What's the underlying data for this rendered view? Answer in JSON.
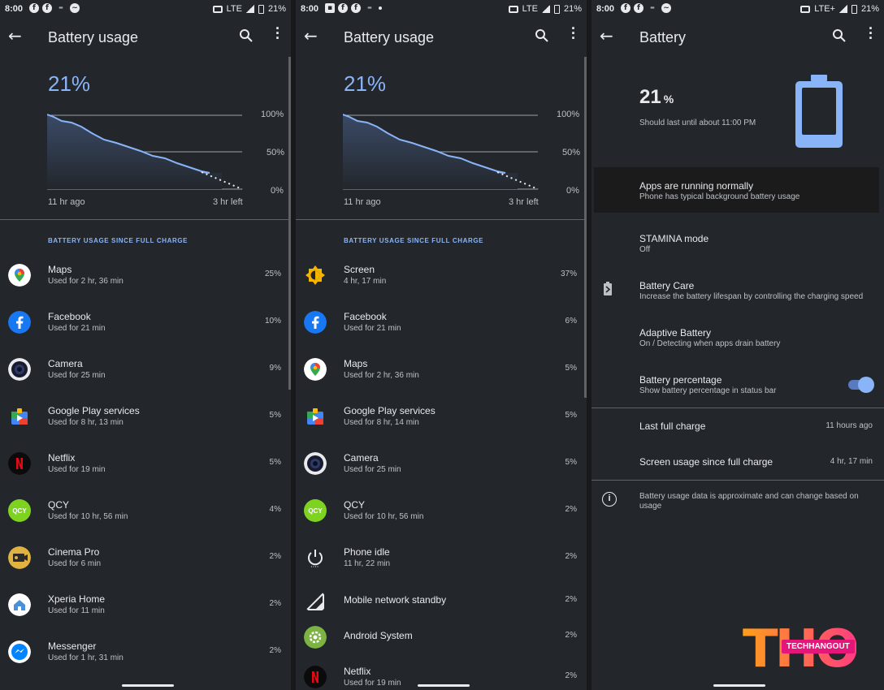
{
  "status": {
    "time": "8:00",
    "network": "LTE",
    "network_right": "LTE+",
    "battery": "21%"
  },
  "left": {
    "title": "Battery usage",
    "percent": "21%",
    "chart": {
      "tick_100": "100%",
      "tick_50": "50%",
      "tick_0": "0%",
      "start": "11 hr ago",
      "end": "3 hr left"
    },
    "section": "BATTERY USAGE SINCE FULL CHARGE",
    "apps": [
      {
        "name": "Maps",
        "sub": "Used for 2 hr, 36 min",
        "pct": "25%",
        "icon": "maps"
      },
      {
        "name": "Facebook",
        "sub": "Used for 21 min",
        "pct": "10%",
        "icon": "facebook"
      },
      {
        "name": "Camera",
        "sub": "Used for 25 min",
        "pct": "9%",
        "icon": "camera"
      },
      {
        "name": "Google Play services",
        "sub": "Used for 8 hr, 13 min",
        "pct": "5%",
        "icon": "playservices"
      },
      {
        "name": "Netflix",
        "sub": "Used for 19 min",
        "pct": "5%",
        "icon": "netflix"
      },
      {
        "name": "QCY",
        "sub": "Used for 10 hr, 56 min",
        "pct": "4%",
        "icon": "qcy"
      },
      {
        "name": "Cinema Pro",
        "sub": "Used for 6 min",
        "pct": "2%",
        "icon": "cinemapro"
      },
      {
        "name": "Xperia Home",
        "sub": "Used for 11 min",
        "pct": "2%",
        "icon": "xperiahome"
      },
      {
        "name": "Messenger",
        "sub": "Used for 1 hr, 31 min",
        "pct": "2%",
        "icon": "messenger"
      }
    ]
  },
  "mid": {
    "title": "Battery usage",
    "percent": "21%",
    "chart": {
      "tick_100": "100%",
      "tick_50": "50%",
      "tick_0": "0%",
      "start": "11 hr ago",
      "end": "3 hr left"
    },
    "section": "BATTERY USAGE SINCE FULL CHARGE",
    "apps": [
      {
        "name": "Screen",
        "sub": "4 hr, 17 min",
        "pct": "37%",
        "icon": "screen"
      },
      {
        "name": "Facebook",
        "sub": "Used for 21 min",
        "pct": "6%",
        "icon": "facebook"
      },
      {
        "name": "Maps",
        "sub": "Used for 2 hr, 36 min",
        "pct": "5%",
        "icon": "maps"
      },
      {
        "name": "Google Play services",
        "sub": "Used for 8 hr, 14 min",
        "pct": "5%",
        "icon": "playservices"
      },
      {
        "name": "Camera",
        "sub": "Used for 25 min",
        "pct": "5%",
        "icon": "camera"
      },
      {
        "name": "QCY",
        "sub": "Used for 10 hr, 56 min",
        "pct": "2%",
        "icon": "qcy"
      },
      {
        "name": "Phone idle",
        "sub": "11 hr, 22 min",
        "pct": "2%",
        "icon": "power"
      },
      {
        "name": "Mobile network standby",
        "sub": "",
        "pct": "2%",
        "icon": "signal"
      },
      {
        "name": "Android System",
        "sub": "",
        "pct": "2%",
        "icon": "androidsystem"
      },
      {
        "name": "Netflix",
        "sub": "Used for 19 min",
        "pct": "2%",
        "icon": "netflix"
      }
    ]
  },
  "right": {
    "title": "Battery",
    "level": "21",
    "level_unit": "%",
    "estimate": "Should last until about 11:00 PM",
    "apps_title": "Apps are running normally",
    "apps_sub": "Phone has typical background battery usage",
    "stamina_title": "STAMINA mode",
    "stamina_sub": "Off",
    "care_title": "Battery Care",
    "care_sub": "Increase the battery lifespan by controlling the charging speed",
    "adaptive_title": "Adaptive Battery",
    "adaptive_sub": "On / Detecting when apps drain battery",
    "pct_title": "Battery percentage",
    "pct_sub": "Show battery percentage in status bar",
    "last_charge_label": "Last full charge",
    "last_charge_value": "11 hours ago",
    "screen_usage_label": "Screen usage since full charge",
    "screen_usage_value": "4 hr, 17 min",
    "info": "Battery usage data is approximate and can change based on usage"
  },
  "logo": {
    "letters": "THO",
    "badge": "TECHHANGOUT"
  }
}
